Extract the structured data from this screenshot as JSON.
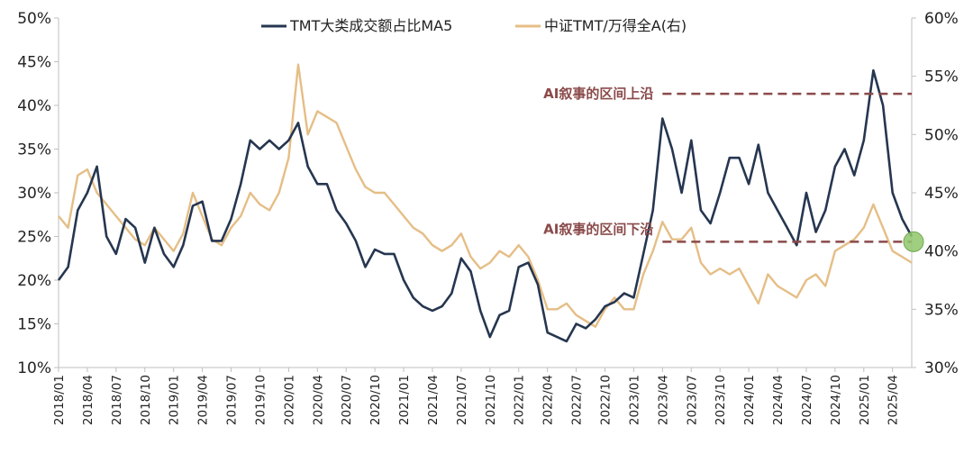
{
  "chart_data": {
    "type": "line",
    "legend_position": "top-center",
    "grid": false,
    "colors": {
      "left_series": "#263650",
      "right_series": "#E5BE86",
      "annotation": "#8B4A4A",
      "marker": "#8FC76B"
    },
    "y_left": {
      "lim": [
        10,
        50
      ],
      "ticks": [
        10,
        15,
        20,
        25,
        30,
        35,
        40,
        45,
        50
      ],
      "tick_labels": [
        "10%",
        "15%",
        "20%",
        "25%",
        "30%",
        "35%",
        "40%",
        "45%",
        "50%"
      ]
    },
    "y_right": {
      "lim": [
        30,
        60
      ],
      "ticks": [
        30,
        35,
        40,
        45,
        50,
        55,
        60
      ],
      "tick_labels": [
        "30%",
        "35%",
        "40%",
        "45%",
        "50%",
        "55%",
        "60%"
      ]
    },
    "x_ticks": [
      "2018/01",
      "2018/04",
      "2018/07",
      "2018/10",
      "2019/01",
      "2019/04",
      "2019/07",
      "2019/10",
      "2020/01",
      "2020/04",
      "2020/07",
      "2020/10",
      "2021/01",
      "2021/04",
      "2021/07",
      "2021/10",
      "2022/01",
      "2022/04",
      "2022/07",
      "2022/10",
      "2023/01",
      "2023/04",
      "2023/07",
      "2023/10",
      "2024/01",
      "2024/04",
      "2024/07",
      "2024/10",
      "2025/01",
      "2025/04"
    ],
    "series": [
      {
        "name": "TMT大类成交额占比MA5",
        "axis": "left",
        "points": [
          [
            "2018/01",
            20
          ],
          [
            "2018/02",
            21.5
          ],
          [
            "2018/03",
            28
          ],
          [
            "2018/04",
            30
          ],
          [
            "2018/05",
            33
          ],
          [
            "2018/06",
            25
          ],
          [
            "2018/07",
            23
          ],
          [
            "2018/08",
            27
          ],
          [
            "2018/09",
            26
          ],
          [
            "2018/10",
            22
          ],
          [
            "2018/11",
            26
          ],
          [
            "2018/12",
            23
          ],
          [
            "2019/01",
            21.5
          ],
          [
            "2019/02",
            24
          ],
          [
            "2019/03",
            28.5
          ],
          [
            "2019/04",
            29
          ],
          [
            "2019/05",
            24.5
          ],
          [
            "2019/06",
            24.5
          ],
          [
            "2019/07",
            27
          ],
          [
            "2019/08",
            31
          ],
          [
            "2019/09",
            36
          ],
          [
            "2019/10",
            35
          ],
          [
            "2019/11",
            36
          ],
          [
            "2019/12",
            35
          ],
          [
            "2020/01",
            36
          ],
          [
            "2020/02",
            38
          ],
          [
            "2020/03",
            33
          ],
          [
            "2020/04",
            31
          ],
          [
            "2020/05",
            31
          ],
          [
            "2020/06",
            28
          ],
          [
            "2020/07",
            26.5
          ],
          [
            "2020/08",
            24.5
          ],
          [
            "2020/09",
            21.5
          ],
          [
            "2020/10",
            23.5
          ],
          [
            "2020/11",
            23
          ],
          [
            "2020/12",
            23
          ],
          [
            "2021/01",
            20
          ],
          [
            "2021/02",
            18
          ],
          [
            "2021/03",
            17
          ],
          [
            "2021/04",
            16.5
          ],
          [
            "2021/05",
            17
          ],
          [
            "2021/06",
            18.5
          ],
          [
            "2021/07",
            22.5
          ],
          [
            "2021/08",
            21
          ],
          [
            "2021/09",
            16.5
          ],
          [
            "2021/10",
            13.5
          ],
          [
            "2021/11",
            16
          ],
          [
            "2021/12",
            16.5
          ],
          [
            "2022/01",
            21.5
          ],
          [
            "2022/02",
            22
          ],
          [
            "2022/03",
            19.5
          ],
          [
            "2022/04",
            14
          ],
          [
            "2022/05",
            13.5
          ],
          [
            "2022/06",
            13
          ],
          [
            "2022/07",
            15
          ],
          [
            "2022/08",
            14.5
          ],
          [
            "2022/09",
            15.5
          ],
          [
            "2022/10",
            17
          ],
          [
            "2022/11",
            17.5
          ],
          [
            "2022/12",
            18.5
          ],
          [
            "2023/01",
            18
          ],
          [
            "2023/02",
            23
          ],
          [
            "2023/03",
            28
          ],
          [
            "2023/04",
            38.5
          ],
          [
            "2023/05",
            35
          ],
          [
            "2023/06",
            30
          ],
          [
            "2023/07",
            36
          ],
          [
            "2023/08",
            28
          ],
          [
            "2023/09",
            26.5
          ],
          [
            "2023/10",
            30
          ],
          [
            "2023/11",
            34
          ],
          [
            "2023/12",
            34
          ],
          [
            "2024/01",
            31
          ],
          [
            "2024/02",
            35.5
          ],
          [
            "2024/03",
            30
          ],
          [
            "2024/04",
            28
          ],
          [
            "2024/05",
            26
          ],
          [
            "2024/06",
            24
          ],
          [
            "2024/07",
            30
          ],
          [
            "2024/08",
            25.5
          ],
          [
            "2024/09",
            28
          ],
          [
            "2024/10",
            33
          ],
          [
            "2024/11",
            35
          ],
          [
            "2024/12",
            32
          ],
          [
            "2025/01",
            36
          ],
          [
            "2025/02",
            44
          ],
          [
            "2025/03",
            40
          ],
          [
            "2025/04",
            30
          ],
          [
            "2025/05",
            27
          ],
          [
            "2025/06",
            25
          ]
        ]
      },
      {
        "name": "中证TMT/万得全A(右)",
        "axis": "right",
        "points": [
          [
            "2018/01",
            43
          ],
          [
            "2018/02",
            42
          ],
          [
            "2018/03",
            46.5
          ],
          [
            "2018/04",
            47
          ],
          [
            "2018/05",
            45
          ],
          [
            "2018/06",
            44
          ],
          [
            "2018/07",
            43
          ],
          [
            "2018/08",
            42
          ],
          [
            "2018/09",
            41
          ],
          [
            "2018/10",
            40.5
          ],
          [
            "2018/11",
            42
          ],
          [
            "2018/12",
            41
          ],
          [
            "2019/01",
            40
          ],
          [
            "2019/02",
            41.5
          ],
          [
            "2019/03",
            45
          ],
          [
            "2019/04",
            43
          ],
          [
            "2019/05",
            41
          ],
          [
            "2019/06",
            40.5
          ],
          [
            "2019/07",
            42
          ],
          [
            "2019/08",
            43
          ],
          [
            "2019/09",
            45
          ],
          [
            "2019/10",
            44
          ],
          [
            "2019/11",
            43.5
          ],
          [
            "2019/12",
            45
          ],
          [
            "2020/01",
            48
          ],
          [
            "2020/02",
            56
          ],
          [
            "2020/03",
            50
          ],
          [
            "2020/04",
            52
          ],
          [
            "2020/05",
            51.5
          ],
          [
            "2020/06",
            51
          ],
          [
            "2020/07",
            49
          ],
          [
            "2020/08",
            47
          ],
          [
            "2020/09",
            45.5
          ],
          [
            "2020/10",
            45
          ],
          [
            "2020/11",
            45
          ],
          [
            "2020/12",
            44
          ],
          [
            "2021/01",
            43
          ],
          [
            "2021/02",
            42
          ],
          [
            "2021/03",
            41.5
          ],
          [
            "2021/04",
            40.5
          ],
          [
            "2021/05",
            40
          ],
          [
            "2021/06",
            40.5
          ],
          [
            "2021/07",
            41.5
          ],
          [
            "2021/08",
            39.5
          ],
          [
            "2021/09",
            38.5
          ],
          [
            "2021/10",
            39
          ],
          [
            "2021/11",
            40
          ],
          [
            "2021/12",
            39.5
          ],
          [
            "2022/01",
            40.5
          ],
          [
            "2022/02",
            39.5
          ],
          [
            "2022/03",
            37.5
          ],
          [
            "2022/04",
            35
          ],
          [
            "2022/05",
            35
          ],
          [
            "2022/06",
            35.5
          ],
          [
            "2022/07",
            34.5
          ],
          [
            "2022/08",
            34
          ],
          [
            "2022/09",
            33.5
          ],
          [
            "2022/10",
            35
          ],
          [
            "2022/11",
            36
          ],
          [
            "2022/12",
            35
          ],
          [
            "2023/01",
            35
          ],
          [
            "2023/02",
            38
          ],
          [
            "2023/03",
            40
          ],
          [
            "2023/04",
            42.5
          ],
          [
            "2023/05",
            41
          ],
          [
            "2023/06",
            41
          ],
          [
            "2023/07",
            42
          ],
          [
            "2023/08",
            39
          ],
          [
            "2023/09",
            38
          ],
          [
            "2023/10",
            38.5
          ],
          [
            "2023/11",
            38
          ],
          [
            "2023/12",
            38.5
          ],
          [
            "2024/01",
            37
          ],
          [
            "2024/02",
            35.5
          ],
          [
            "2024/03",
            38
          ],
          [
            "2024/04",
            37
          ],
          [
            "2024/05",
            36.5
          ],
          [
            "2024/06",
            36
          ],
          [
            "2024/07",
            37.5
          ],
          [
            "2024/08",
            38
          ],
          [
            "2024/09",
            37
          ],
          [
            "2024/10",
            40
          ],
          [
            "2024/11",
            40.5
          ],
          [
            "2024/12",
            41
          ],
          [
            "2025/01",
            42
          ],
          [
            "2025/02",
            44
          ],
          [
            "2025/03",
            42
          ],
          [
            "2025/04",
            40
          ],
          [
            "2025/05",
            39.5
          ],
          [
            "2025/06",
            39
          ]
        ]
      }
    ],
    "annotations": [
      {
        "text": "AI叙事的区间上沿",
        "axis": "right",
        "level": 53.5,
        "from": "2023/04",
        "style": "dashed"
      },
      {
        "text": "AI叙事的区间下沿",
        "axis": "right",
        "level": 40.8,
        "from": "2023/04",
        "style": "dashed"
      }
    ],
    "marker": {
      "x": "2025/06",
      "axis": "right",
      "value": 40.8,
      "shape": "circle"
    }
  }
}
